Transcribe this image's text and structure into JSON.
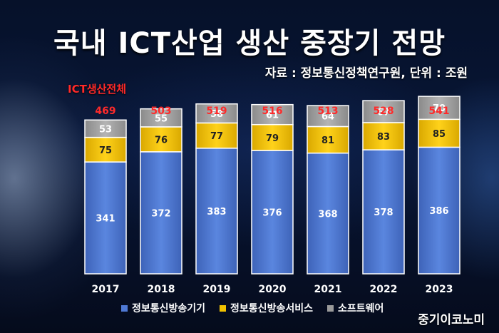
{
  "header": {
    "title": "국내 ICT산업 생산 중장기 전망",
    "source": "자료 : 정보통신정책연구원, 단위 : 조원",
    "total_label": "ICT생산전체"
  },
  "brand": "중기이코노미",
  "colors": {
    "equipment": "#4f79d4",
    "services": "#f2c200",
    "software": "#9a9a9a",
    "total_text": "#ff2a2a"
  },
  "chart_data": {
    "type": "bar",
    "stacked": true,
    "categories": [
      "2017",
      "2018",
      "2019",
      "2020",
      "2021",
      "2022",
      "2023"
    ],
    "series": [
      {
        "name": "정보통신방송기기",
        "values": [
          341,
          372,
          383,
          376,
          368,
          378,
          386
        ]
      },
      {
        "name": "정보통신방송서비스",
        "values": [
          75,
          76,
          77,
          79,
          81,
          83,
          85
        ]
      },
      {
        "name": "소프트웨어",
        "values": [
          53,
          55,
          58,
          61,
          64,
          67,
          70
        ]
      }
    ],
    "totals": [
      469,
      503,
      519,
      516,
      513,
      528,
      541
    ],
    "ylim": [
      0,
      600
    ],
    "grid": false,
    "legend_position": "bottom"
  }
}
